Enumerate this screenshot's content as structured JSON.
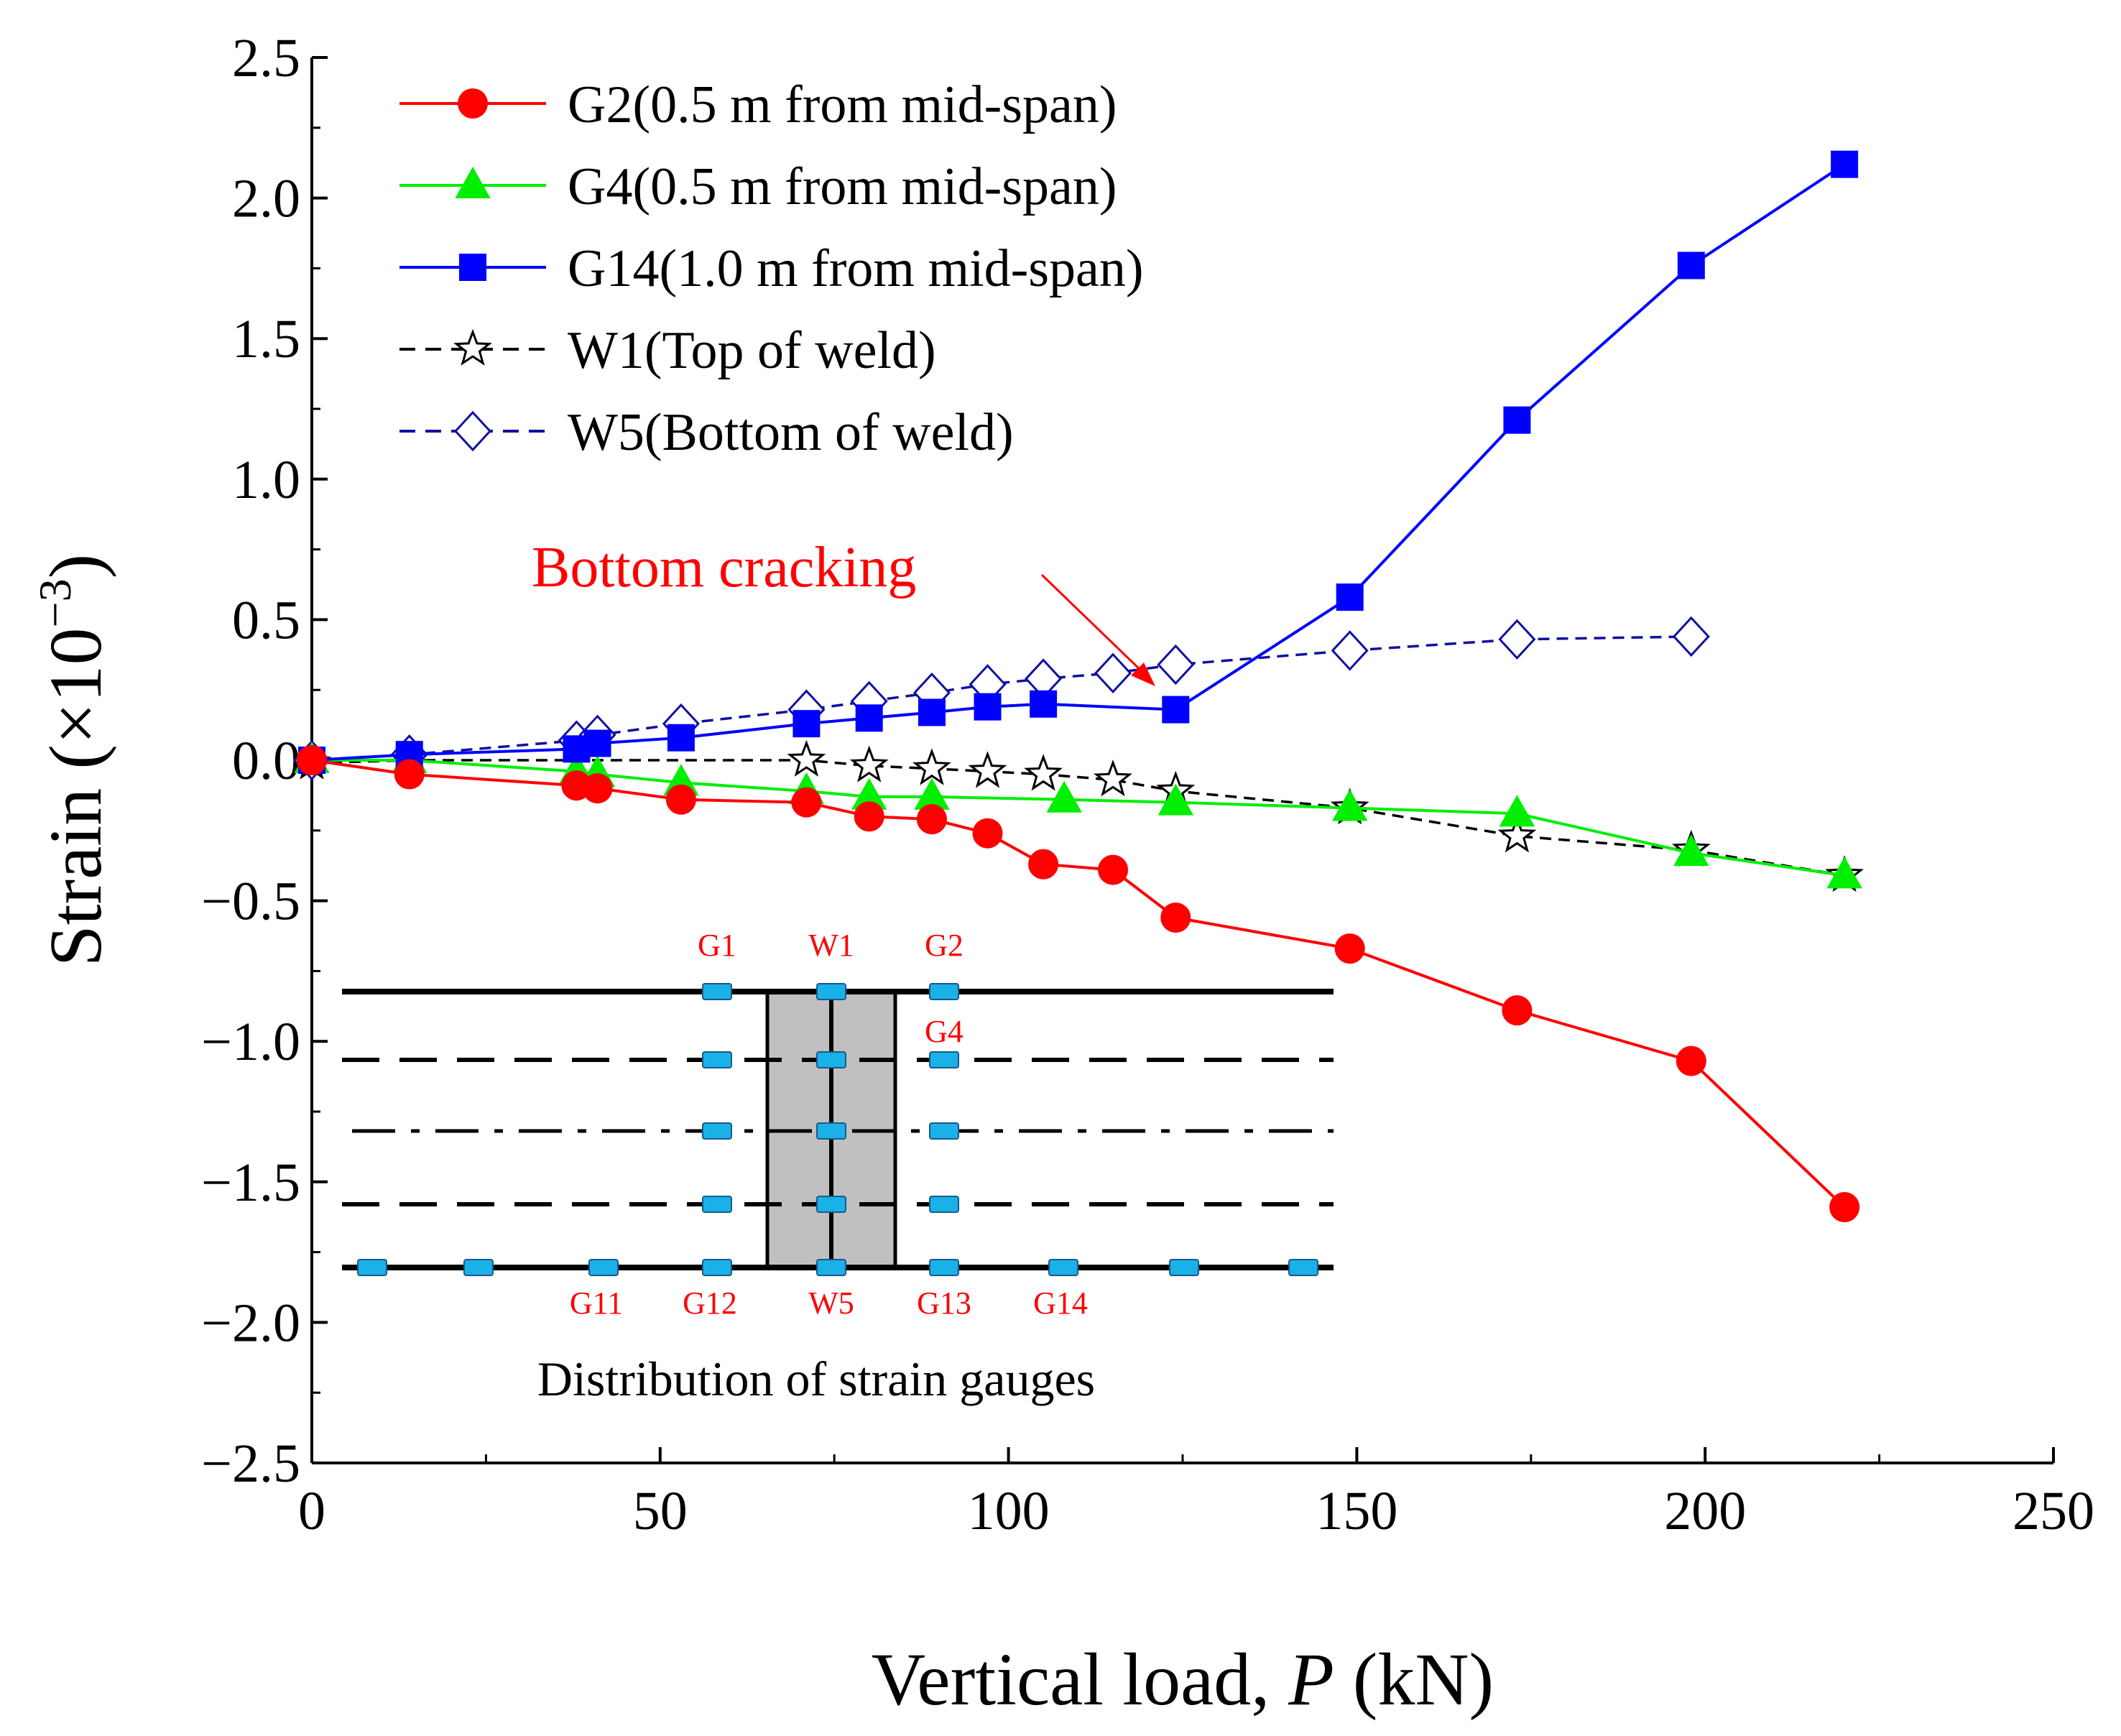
{
  "chart_data": {
    "type": "line",
    "xlabel_prefix": "Vertical load, ",
    "xlabel_var": "P",
    "xlabel_suffix": " (kN)",
    "ylabel_main": "Strain (×10",
    "ylabel_sup": "−3",
    "ylabel_end": ")",
    "xlim": [
      0,
      250
    ],
    "ylim": [
      -2.5,
      2.5
    ],
    "xticks": [
      0,
      50,
      100,
      150,
      200,
      250
    ],
    "xtick_labels": [
      "0",
      "50",
      "100",
      "150",
      "200",
      "250"
    ],
    "yticks": [
      2.5,
      2.0,
      1.5,
      1.0,
      0.5,
      0.0,
      -0.5,
      -1.0,
      -1.5,
      -2.0,
      -2.5
    ],
    "ytick_labels": [
      "2.5",
      "2.0",
      "1.5",
      "1.0",
      "0.5",
      "0.0",
      "−0.5",
      "−1.0",
      "−1.5",
      "−2.0",
      "−2.5"
    ],
    "grid": false,
    "legend_position": "top-left",
    "series": [
      {
        "name": "G2(0.5 m from mid-span)",
        "color": "#ff0000",
        "marker": "circle",
        "dash": "solid",
        "x": [
          0,
          14,
          38,
          41,
          53,
          71,
          80,
          89,
          97,
          105,
          115,
          124,
          149,
          173,
          198,
          220
        ],
        "y": [
          0,
          -0.05,
          -0.09,
          -0.1,
          -0.14,
          -0.15,
          -0.2,
          -0.21,
          -0.26,
          -0.37,
          -0.39,
          -0.56,
          -0.67,
          -0.89,
          -1.07,
          -1.59
        ]
      },
      {
        "name": "G4(0.5 m from mid-span)",
        "color": "#00ee00",
        "marker": "triangle",
        "dash": "solid",
        "x": [
          0,
          14,
          38,
          41,
          53,
          71,
          80,
          89,
          108,
          124,
          149,
          173,
          198,
          220
        ],
        "y": [
          0,
          0,
          -0.04,
          -0.05,
          -0.08,
          -0.11,
          -0.13,
          -0.13,
          -0.14,
          -0.15,
          -0.17,
          -0.19,
          -0.33,
          -0.41
        ]
      },
      {
        "name": "G14(1.0 m from mid-span)",
        "color": "#0000ff",
        "marker": "square",
        "dash": "solid",
        "x": [
          0,
          14,
          38,
          41,
          53,
          71,
          80,
          89,
          97,
          105,
          124,
          149,
          173,
          198,
          220
        ],
        "y": [
          0,
          0.02,
          0.04,
          0.06,
          0.08,
          0.13,
          0.15,
          0.17,
          0.19,
          0.2,
          0.18,
          0.58,
          1.21,
          1.76,
          2.12
        ]
      },
      {
        "name": "W1(Top of weld)",
        "color": "#000000",
        "marker": "star",
        "dash": "dashed",
        "x": [
          0,
          14,
          71,
          80,
          89,
          97,
          105,
          115,
          124,
          149,
          173,
          198,
          220
        ],
        "y": [
          -0.01,
          0,
          0,
          -0.02,
          -0.03,
          -0.04,
          -0.05,
          -0.07,
          -0.11,
          -0.17,
          -0.27,
          -0.32,
          -0.41
        ]
      },
      {
        "name": "W5(Bottom of weld)",
        "color": "#1010a0",
        "marker": "diamond",
        "dash": "dashed",
        "x": [
          0,
          14,
          38,
          41,
          53,
          71,
          80,
          89,
          97,
          105,
          115,
          124,
          149,
          173,
          198
        ],
        "y": [
          0,
          0.02,
          0.07,
          0.09,
          0.13,
          0.18,
          0.21,
          0.24,
          0.27,
          0.29,
          0.31,
          0.34,
          0.39,
          0.43,
          0.44
        ]
      }
    ],
    "annotations": [
      {
        "text": "Bottom cracking",
        "color": "#ff0000",
        "points_to": {
          "x": 122,
          "y": 0.26
        }
      }
    ]
  },
  "inset": {
    "caption": "Distribution of strain gauges",
    "label_color": "#ff0000",
    "gauge_color": "#1ab0e8",
    "weld_fill": "#c0c0c0",
    "top_labels": [
      "G1",
      "W1",
      "G2"
    ],
    "mid_label": "G4",
    "bottom_labels": [
      "G11",
      "G12",
      "W5",
      "G13",
      "G14"
    ]
  }
}
